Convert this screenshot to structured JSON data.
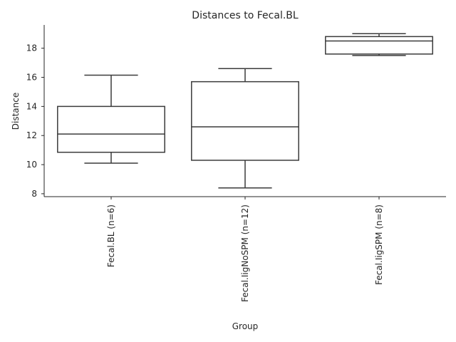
{
  "chart_data": {
    "type": "box",
    "title": "Distances to Fecal.BL",
    "xlabel": "Group",
    "ylabel": "Distance",
    "ylim": [
      7.8,
      19.6
    ],
    "yticks": [
      8,
      10,
      12,
      14,
      16,
      18
    ],
    "grid": false,
    "categories": [
      "Fecal.BL (n=6)",
      "Fecal.IigNoSPM (n=12)",
      "Fecal.IigSPM (n=8)"
    ],
    "boxes": [
      {
        "whisker_low": 10.1,
        "q1": 10.85,
        "median": 12.1,
        "q3": 14.0,
        "whisker_high": 16.15
      },
      {
        "whisker_low": 8.4,
        "q1": 10.3,
        "median": 12.6,
        "q3": 15.7,
        "whisker_high": 16.6
      },
      {
        "whisker_low": 17.5,
        "q1": 17.6,
        "median": 18.5,
        "q3": 18.8,
        "whisker_high": 19.0
      }
    ]
  }
}
